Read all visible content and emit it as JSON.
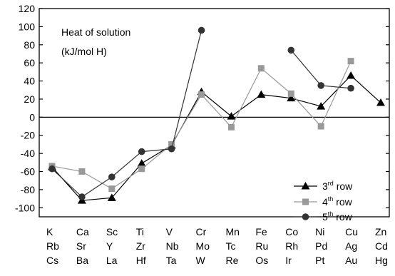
{
  "chart_data": {
    "type": "line",
    "annotation": [
      "Heat of solution",
      "(kJ/mol H)"
    ],
    "ylim": [
      -110,
      120
    ],
    "yticks": [
      -100,
      -80,
      -60,
      -40,
      -20,
      0,
      20,
      40,
      60,
      80,
      100,
      120
    ],
    "zero_line": true,
    "legend_position": "bottom-right",
    "category_rows": [
      [
        "K",
        "Ca",
        "Sc",
        "Ti",
        "V",
        "Cr",
        "Mn",
        "Fe",
        "Co",
        "Ni",
        "Cu",
        "Zn"
      ],
      [
        "Rb",
        "Sr",
        "Y",
        "Zr",
        "Nb",
        "Mo",
        "Tc",
        "Ru",
        "Rh",
        "Pd",
        "Ag",
        "Cd"
      ],
      [
        "Cs",
        "Ba",
        "La",
        "Hf",
        "Ta",
        "W",
        "Re",
        "Os",
        "Ir",
        "Pt",
        "Au",
        "Hg"
      ]
    ],
    "series": [
      {
        "name": "3rd row",
        "name_base": "3",
        "name_sup": "rd",
        "name_rest": " row",
        "marker": "triangle",
        "color": "#000000",
        "values": [
          -55,
          -92,
          -89,
          -51,
          -31,
          28,
          1,
          25,
          21,
          12,
          46,
          16
        ]
      },
      {
        "name": "4th row",
        "name_base": "4",
        "name_sup": "th",
        "name_rest": " row",
        "marker": "square",
        "color": "#999999",
        "values": [
          -54,
          -60,
          -79,
          -57,
          -30,
          25,
          -11,
          54,
          26,
          -10,
          62,
          null
        ]
      },
      {
        "name": "5th row",
        "name_base": "5",
        "name_sup": "th",
        "name_rest": " row",
        "marker": "circle",
        "color": "#333333",
        "values": [
          -57,
          -88,
          -66,
          -38,
          -35,
          96,
          null,
          null,
          74,
          35,
          32,
          null
        ]
      }
    ]
  }
}
